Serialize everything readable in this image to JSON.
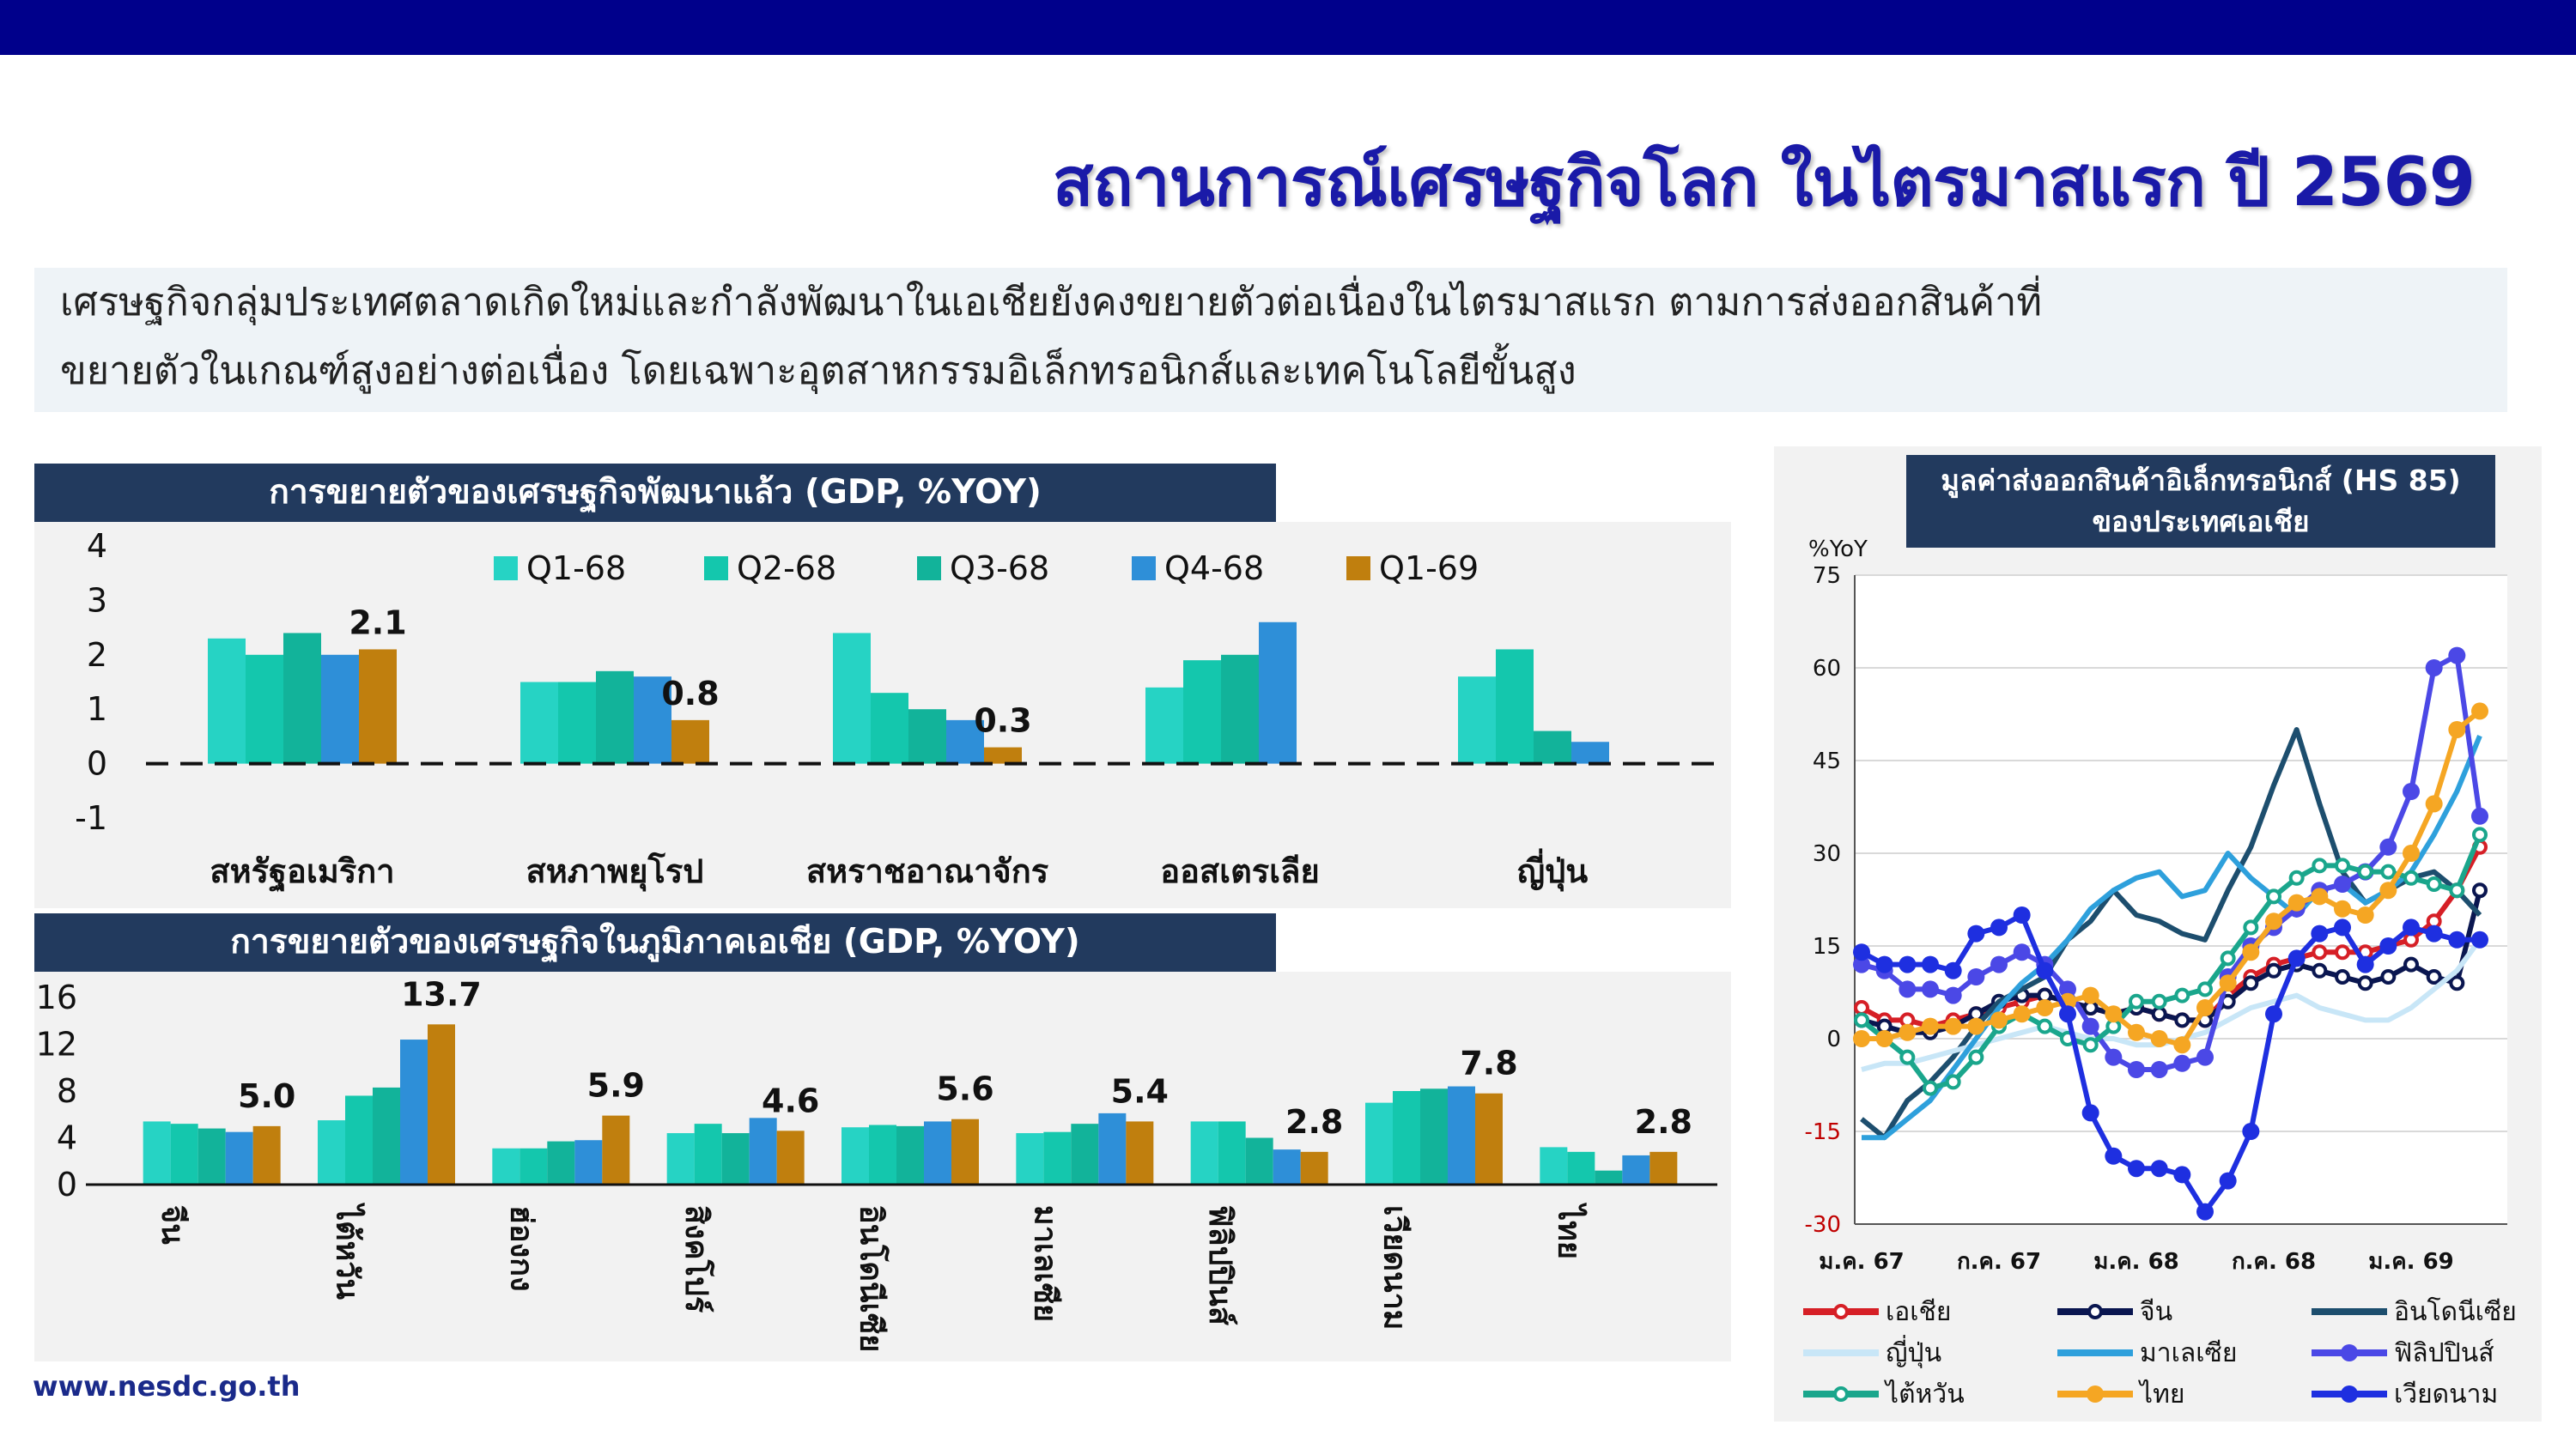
{
  "header": {
    "title": "สถานการณ์เศรษฐกิจโลก ในไตรมาสแรก ปี 2569",
    "summary_line1": "เศรษฐกิจกลุ่มประเทศตลาดเกิดใหม่และกำลังพัฒนาในเอเชียยังคงขยายตัวต่อเนื่องในไตรมาสแรก ตามการส่งออกสินค้าที่",
    "summary_line2": "ขยายตัวในเกณฑ์สูงอย่างต่อเนื่อง โดยเฉพาะอุตสาหกรรมอิเล็กทรอนิกส์และเทคโนโลยีขั้นสูง"
  },
  "footer": {
    "url": "www.nesdc.go.th"
  },
  "colors": {
    "Q1-68": "#26d3c4",
    "Q2-68": "#14c7ad",
    "Q3-68": "#12b39a",
    "Q4-68": "#2e8fd8",
    "Q1-69": "#c07f0e",
    "header_bar": "#00008b",
    "panel_head": "#223a5e"
  },
  "chart_data": [
    {
      "type": "bar",
      "title": "การขยายตัวของเศรษฐกิจพัฒนาแล้ว (GDP, %YOY)",
      "categories": [
        "สหรัฐอเมริกา",
        "สหภาพยุโรป",
        "สหราชอาณาจักร",
        "ออสเตรเลีย",
        "ญี่ปุ่น"
      ],
      "series": [
        {
          "name": "Q1-68",
          "values": [
            2.3,
            1.5,
            2.4,
            1.4,
            1.6
          ]
        },
        {
          "name": "Q2-68",
          "values": [
            2.0,
            1.5,
            1.3,
            1.9,
            2.1
          ]
        },
        {
          "name": "Q3-68",
          "values": [
            2.4,
            1.7,
            1.0,
            2.0,
            0.6
          ]
        },
        {
          "name": "Q4-68",
          "values": [
            2.0,
            1.6,
            0.8,
            2.6,
            0.4
          ]
        },
        {
          "name": "Q1-69",
          "values": [
            2.1,
            0.8,
            0.3,
            null,
            null
          ]
        }
      ],
      "data_labels": [
        "2.1",
        "0.8",
        "0.3"
      ],
      "yticks": [
        "4",
        "3",
        "2",
        "1",
        "0",
        "-1"
      ],
      "ylim": [
        -1,
        4
      ],
      "legend": "top",
      "grid": false
    },
    {
      "type": "bar",
      "title": "การขยายตัวของเศรษฐกิจในภูมิภาคเอเชีย (GDP, %YOY)",
      "categories": [
        "จีน",
        "ไต้หวัน",
        "ฮ่องกง",
        "สิงคโปร์",
        "อินโดนีเซีย",
        "มาเลเซีย",
        "ฟิลิปปินส์",
        "เวียดนาม",
        "ไทย"
      ],
      "series": [
        {
          "name": "Q1-68",
          "values": [
            5.4,
            5.5,
            3.1,
            4.4,
            4.9,
            4.4,
            5.4,
            7.0,
            3.2
          ]
        },
        {
          "name": "Q2-68",
          "values": [
            5.2,
            7.6,
            3.1,
            5.2,
            5.1,
            4.5,
            5.4,
            8.0,
            2.8
          ]
        },
        {
          "name": "Q3-68",
          "values": [
            4.8,
            8.3,
            3.7,
            4.4,
            5.0,
            5.2,
            4.0,
            8.2,
            1.2
          ]
        },
        {
          "name": "Q4-68",
          "values": [
            4.5,
            12.4,
            3.8,
            5.7,
            5.4,
            6.1,
            3.0,
            8.4,
            2.5
          ]
        },
        {
          "name": "Q1-69",
          "values": [
            5.0,
            13.7,
            5.9,
            4.6,
            5.6,
            5.4,
            2.8,
            7.8,
            2.8
          ]
        }
      ],
      "data_labels": [
        "5.0",
        "13.7",
        "5.9",
        "4.6",
        "5.6",
        "5.4",
        "2.8",
        "7.8",
        "2.8"
      ],
      "yticks": [
        "16",
        "12",
        "8",
        "4",
        "0"
      ],
      "ylim": [
        0,
        16
      ],
      "grid": false
    },
    {
      "type": "line",
      "title_line1": "มูลค่าส่งออกสินค้าอิเล็กทรอนิกส์ (HS 85)",
      "title_line2": "ของประเทศเอเชีย",
      "ylabel": "%YoY",
      "yticks": [
        "75",
        "60",
        "45",
        "30",
        "15",
        "0",
        "-15",
        "-30"
      ],
      "ylim": [
        -30,
        75
      ],
      "xticks": [
        "ม.ค. 67",
        "ก.ค. 67",
        "ม.ค. 68",
        "ก.ค. 68",
        "ม.ค. 69"
      ],
      "xlim": [
        0,
        27
      ],
      "grid": true,
      "legend": "bottom",
      "series": [
        {
          "name": "เอเชีย",
          "color": "#d61f26",
          "marker": "ring",
          "values": [
            5,
            3,
            3,
            2,
            3,
            4,
            5,
            6,
            7,
            6,
            5,
            4,
            5,
            4,
            3,
            3,
            7,
            10,
            12,
            13,
            14,
            14,
            14,
            15,
            16,
            19,
            24,
            31
          ]
        },
        {
          "name": "จีน",
          "color": "#0a1650",
          "marker": "ring",
          "values": [
            3,
            2,
            1,
            1,
            2,
            4,
            6,
            7,
            7,
            6,
            5,
            4,
            5,
            4,
            3,
            3,
            6,
            9,
            11,
            12,
            11,
            10,
            9,
            10,
            12,
            10,
            9,
            24
          ]
        },
        {
          "name": "อินโดนีเซีย",
          "color": "#1d4e6e",
          "marker": "none",
          "values": [
            -13,
            -16,
            -10,
            -7,
            -3,
            2,
            6,
            8,
            10,
            16,
            19,
            24,
            20,
            19,
            17,
            16,
            24,
            31,
            41,
            50,
            38,
            27,
            22,
            24,
            26,
            27,
            24,
            20
          ]
        },
        {
          "name": "ญี่ปุ่น",
          "color": "#c8e6f7",
          "marker": "none",
          "values": [
            -5,
            -4,
            -4,
            -3,
            -2,
            -1,
            0,
            1,
            2,
            1,
            0,
            0,
            -1,
            -1,
            0,
            1,
            3,
            5,
            6,
            7,
            5,
            4,
            3,
            3,
            5,
            8,
            11,
            16
          ]
        },
        {
          "name": "มาเลเซีย",
          "color": "#2ea0dc",
          "marker": "none",
          "values": [
            -16,
            -16,
            -13,
            -10,
            -5,
            0,
            5,
            9,
            12,
            16,
            21,
            24,
            26,
            27,
            23,
            24,
            30,
            26,
            23,
            20,
            24,
            25,
            22,
            24,
            27,
            33,
            40,
            49
          ]
        },
        {
          "name": "ฟิลิปปินส์",
          "color": "#4b48e6",
          "marker": "dot",
          "values": [
            12,
            11,
            8,
            8,
            7,
            10,
            12,
            14,
            12,
            8,
            2,
            -3,
            -5,
            -5,
            -4,
            -3,
            10,
            15,
            18,
            21,
            24,
            25,
            27,
            31,
            40,
            60,
            62,
            36
          ]
        },
        {
          "name": "ไต้หวัน",
          "color": "#1aa68c",
          "marker": "ring",
          "values": [
            3,
            0,
            -3,
            -8,
            -7,
            -3,
            2,
            4,
            2,
            0,
            -1,
            2,
            6,
            6,
            7,
            8,
            13,
            18,
            23,
            26,
            28,
            28,
            27,
            27,
            26,
            25,
            24,
            33
          ]
        },
        {
          "name": "ไทย",
          "color": "#f5a623",
          "marker": "dot",
          "values": [
            0,
            0,
            1,
            2,
            2,
            2,
            3,
            4,
            5,
            6,
            7,
            4,
            1,
            0,
            -1,
            5,
            9,
            14,
            19,
            22,
            23,
            21,
            20,
            24,
            30,
            38,
            50,
            53
          ]
        },
        {
          "name": "เวียดนาม",
          "color": "#1e2fe0",
          "marker": "dot",
          "values": [
            14,
            12,
            12,
            12,
            11,
            17,
            18,
            20,
            11,
            4,
            -12,
            -19,
            -21,
            -21,
            -22,
            -28,
            -23,
            -15,
            4,
            13,
            17,
            18,
            12,
            15,
            18,
            17,
            16,
            16
          ]
        }
      ]
    }
  ]
}
